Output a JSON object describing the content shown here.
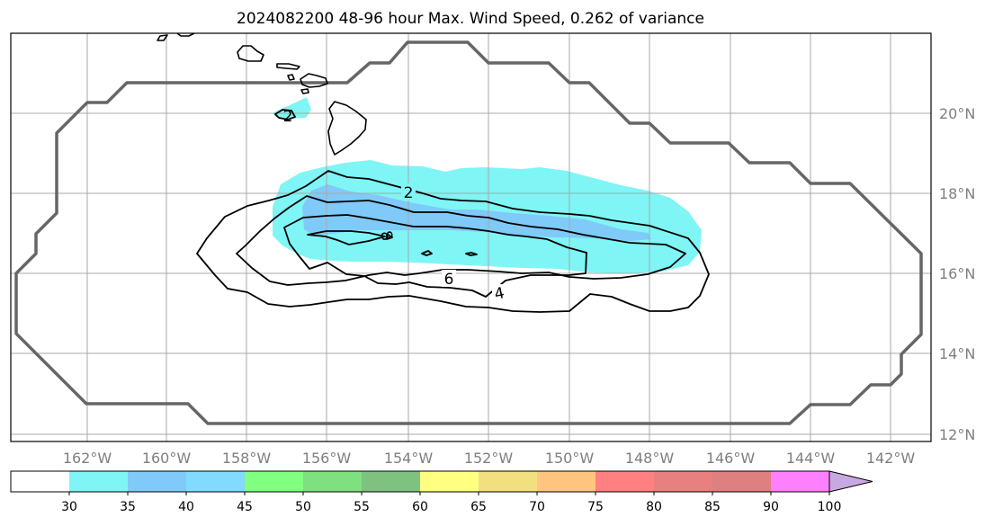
{
  "title": "2024082200 48-96 hour Max. Wind Speed, 0.262 of variance",
  "map": {
    "lon_labels": [
      "162°W",
      "160°W",
      "158°W",
      "156°W",
      "154°W",
      "152°W",
      "150°W",
      "148°W",
      "146°W",
      "144°W",
      "142°W"
    ],
    "lat_labels": [
      "20°N",
      "18°N",
      "16°N",
      "14°N",
      "12°N"
    ],
    "contour_labels": [
      "2",
      "2",
      "4",
      "6",
      "8"
    ],
    "colors": {
      "frame": "#000000",
      "grid": "#a8a8a8",
      "outer_boundary": "#666666",
      "coast": "#000000",
      "contour": "#000000"
    }
  },
  "colorbar": {
    "labels": [
      "30",
      "35",
      "40",
      "45",
      "50",
      "55",
      "60",
      "65",
      "70",
      "75",
      "80",
      "85",
      "90",
      "100"
    ],
    "colors": [
      "#ffffff",
      "#7ff5f5",
      "#7fcaf8",
      "#80dbff",
      "#80ff80",
      "#7fe07f",
      "#7fc27f",
      "#ffff80",
      "#f2e080",
      "#ffc57f",
      "#ff8080",
      "#e88080",
      "#df7f7f",
      "#ff80ff",
      "#c8a8e0"
    ]
  }
}
